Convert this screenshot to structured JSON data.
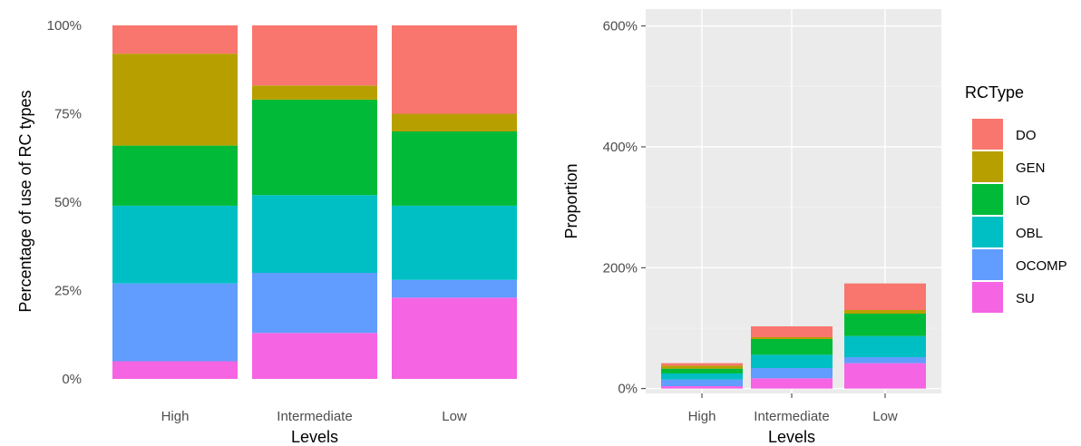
{
  "chart_data": [
    {
      "type": "bar",
      "stacked": true,
      "normalized": true,
      "categories": [
        "High",
        "Intermediate",
        "Low"
      ],
      "series": [
        {
          "name": "DO",
          "color": "#F8766D",
          "values": [
            8,
            17,
            25
          ]
        },
        {
          "name": "GEN",
          "color": "#B79F00",
          "values": [
            26,
            4,
            5
          ]
        },
        {
          "name": "IO",
          "color": "#00BA38",
          "values": [
            17,
            27,
            21
          ]
        },
        {
          "name": "OBL",
          "color": "#00BFC4",
          "values": [
            22,
            22,
            21
          ]
        },
        {
          "name": "OCOMP",
          "color": "#619CFF",
          "values": [
            22,
            17,
            5
          ]
        },
        {
          "name": "SU",
          "color": "#F564E3",
          "values": [
            5,
            13,
            23
          ]
        }
      ],
      "xlabel": "Levels",
      "ylabel": "Percentage of use of RC types",
      "ylim": [
        0,
        100
      ],
      "yticks": [
        "0%",
        "25%",
        "50%",
        "75%",
        "100%"
      ],
      "grid": false,
      "background": "white"
    },
    {
      "type": "bar",
      "stacked": true,
      "categories": [
        "High",
        "Intermediate",
        "Low"
      ],
      "series": [
        {
          "name": "DO",
          "color": "#F8766D",
          "values": [
            4,
            18,
            44
          ]
        },
        {
          "name": "GEN",
          "color": "#B79F00",
          "values": [
            5,
            3,
            6
          ]
        },
        {
          "name": "IO",
          "color": "#00BA38",
          "values": [
            8,
            26,
            37
          ]
        },
        {
          "name": "OBL",
          "color": "#00BFC4",
          "values": [
            10,
            22,
            35
          ]
        },
        {
          "name": "OCOMP",
          "color": "#619CFF",
          "values": [
            11,
            17,
            10
          ]
        },
        {
          "name": "SU",
          "color": "#F564E3",
          "values": [
            4,
            17,
            42
          ]
        }
      ],
      "xlabel": "Levels",
      "ylabel": "Proportion",
      "ylim": [
        -8,
        628
      ],
      "yticks": [
        0,
        200,
        400,
        600
      ],
      "ytick_labels": [
        "0%",
        "200%",
        "400%",
        "600%"
      ],
      "grid": true,
      "background": "#EBEBEB"
    }
  ],
  "legend": {
    "title": "RCType",
    "placement": "right",
    "items": [
      {
        "label": "DO",
        "color": "#F8766D"
      },
      {
        "label": "GEN",
        "color": "#B79F00"
      },
      {
        "label": "IO",
        "color": "#00BA38"
      },
      {
        "label": "OBL",
        "color": "#00BFC4"
      },
      {
        "label": "OCOMP",
        "color": "#619CFF"
      },
      {
        "label": "SU",
        "color": "#F564E3"
      }
    ]
  }
}
